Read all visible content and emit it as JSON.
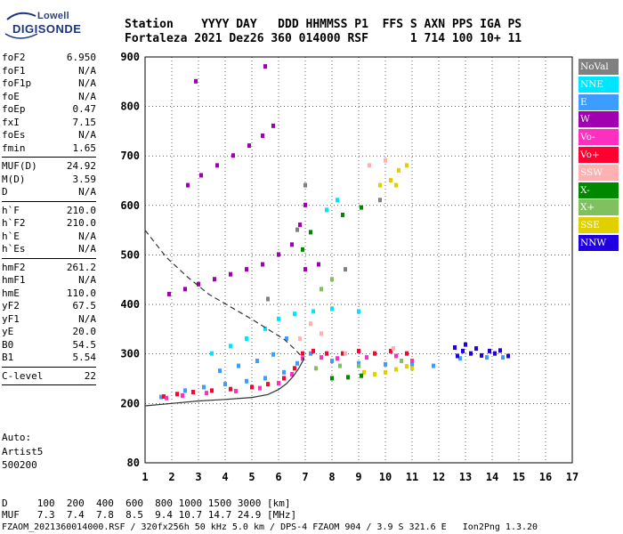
{
  "logo": {
    "line1": "Lowell",
    "line2": "DIGISONDE"
  },
  "header": {
    "labels": "Station    YYYY DAY   DDD HHMMSS P1  FFS S AXN PPS IGA PS",
    "values": "Fortaleza 2021 Dez26 360 014000 RSF      1 714 100 10+ 11"
  },
  "params": [
    {
      "name": "foF2",
      "value": "6.950"
    },
    {
      "name": "foF1",
      "value": "N/A"
    },
    {
      "name": "foF1p",
      "value": "N/A"
    },
    {
      "name": "foE",
      "value": "N/A"
    },
    {
      "name": "foEp",
      "value": "0.47"
    },
    {
      "name": "fxI",
      "value": "7.15"
    },
    {
      "name": "foEs",
      "value": "N/A"
    },
    {
      "name": "fmin",
      "value": "1.65"
    },
    {
      "sep": true
    },
    {
      "name": "MUF(D)",
      "value": "24.92"
    },
    {
      "name": "M(D)",
      "value": "3.59"
    },
    {
      "name": "D",
      "value": "N/A"
    },
    {
      "sep": true
    },
    {
      "name": "h`F",
      "value": "210.0"
    },
    {
      "name": "h`F2",
      "value": "210.0"
    },
    {
      "name": "h`E",
      "value": "N/A"
    },
    {
      "name": "h`Es",
      "value": "N/A"
    },
    {
      "sep": true
    },
    {
      "name": "hmF2",
      "value": "261.2"
    },
    {
      "name": "hmF1",
      "value": "N/A"
    },
    {
      "name": "hmE",
      "value": "110.0"
    },
    {
      "name": "yF2",
      "value": "67.5"
    },
    {
      "name": "yF1",
      "value": "N/A"
    },
    {
      "name": "yE",
      "value": "20.0"
    },
    {
      "name": "B0",
      "value": "54.5"
    },
    {
      "name": "B1",
      "value": "5.54"
    },
    {
      "sep": true
    },
    {
      "name": "C-level",
      "value": "22"
    },
    {
      "sep": true
    }
  ],
  "auto": {
    "line1": "Auto:",
    "line2": "Artist5",
    "line3": "500200"
  },
  "legend": [
    {
      "label": "NoVal",
      "color": "#808080"
    },
    {
      "label": "NNE",
      "color": "#00e5ff"
    },
    {
      "label": "E",
      "color": "#3d9dff"
    },
    {
      "label": "W",
      "color": "#a000b0"
    },
    {
      "label": "Vo-",
      "color": "#ff30c0"
    },
    {
      "label": "Vo+",
      "color": "#ff0030"
    },
    {
      "label": "SSW",
      "color": "#ffb0b0"
    },
    {
      "label": "X-",
      "color": "#008800"
    },
    {
      "label": "X+",
      "color": "#80c060"
    },
    {
      "label": "SSE",
      "color": "#e0d000"
    },
    {
      "label": "NNW",
      "color": "#2000e0"
    }
  ],
  "footer": {
    "row1": "D     100  200  400  600  800 1000 1500 3000 [km]",
    "row2": "MUF   7.3  7.4  7.8  8.5  9.4 10.7 14.7 24.9 [MHz]",
    "row3": "FZAOM_2021360014000.RSF / 320fx256h 50 kHz 5.0 km / DPS-4 FZAOM 904 / 3.9 S 321.6 E   Ion2Png 1.3.20"
  },
  "chart_data": {
    "type": "scatter",
    "xlim": [
      1,
      17
    ],
    "ylim": [
      80,
      900
    ],
    "x_ticks": [
      1,
      2,
      3,
      4,
      5,
      6,
      7,
      8,
      9,
      10,
      11,
      12,
      13,
      14,
      15,
      16,
      17
    ],
    "y_ticks": [
      80,
      200,
      300,
      400,
      500,
      600,
      700,
      800,
      900
    ],
    "grid": true,
    "series": [
      {
        "color": "#3d9dff",
        "points": [
          [
            1.6,
            212
          ],
          [
            2.5,
            225
          ],
          [
            3.2,
            232
          ],
          [
            4.0,
            238
          ],
          [
            4.8,
            244
          ],
          [
            5.5,
            250
          ],
          [
            6.2,
            262
          ],
          [
            6.7,
            280
          ],
          [
            7.2,
            300
          ],
          [
            8.0,
            285
          ],
          [
            9.0,
            280
          ],
          [
            10.0,
            278
          ],
          [
            11.0,
            276
          ],
          [
            11.8,
            275
          ],
          [
            12.8,
            290
          ],
          [
            13.8,
            292
          ],
          [
            14.4,
            292
          ],
          [
            3.8,
            265
          ],
          [
            4.5,
            275
          ],
          [
            5.2,
            285
          ],
          [
            5.8,
            298
          ],
          [
            6.3,
            330
          ]
        ]
      },
      {
        "color": "#ff0030",
        "points": [
          [
            1.7,
            213
          ],
          [
            2.2,
            218
          ],
          [
            2.8,
            222
          ],
          [
            3.5,
            225
          ],
          [
            4.2,
            228
          ],
          [
            5.0,
            232
          ],
          [
            5.6,
            238
          ],
          [
            6.2,
            250
          ],
          [
            6.6,
            270
          ],
          [
            6.9,
            300
          ],
          [
            7.3,
            305
          ],
          [
            7.8,
            300
          ],
          [
            8.4,
            300
          ],
          [
            9.0,
            305
          ],
          [
            9.6,
            300
          ],
          [
            10.2,
            305
          ],
          [
            10.8,
            300
          ]
        ]
      },
      {
        "color": "#a000b0",
        "points": [
          [
            1.9,
            420
          ],
          [
            2.5,
            430
          ],
          [
            3.0,
            440
          ],
          [
            3.6,
            450
          ],
          [
            4.2,
            460
          ],
          [
            4.8,
            470
          ],
          [
            5.4,
            480
          ],
          [
            6.0,
            500
          ],
          [
            6.5,
            520
          ],
          [
            6.8,
            560
          ],
          [
            7.0,
            600
          ],
          [
            2.6,
            640
          ],
          [
            3.1,
            660
          ],
          [
            3.7,
            680
          ],
          [
            4.3,
            700
          ],
          [
            4.9,
            720
          ],
          [
            5.4,
            740
          ],
          [
            5.8,
            760
          ],
          [
            2.9,
            850
          ],
          [
            5.5,
            880
          ],
          [
            7.0,
            470
          ],
          [
            7.5,
            480
          ]
        ]
      },
      {
        "color": "#ff30c0",
        "points": [
          [
            1.8,
            210
          ],
          [
            2.4,
            215
          ],
          [
            3.3,
            220
          ],
          [
            4.4,
            224
          ],
          [
            5.3,
            230
          ],
          [
            6.0,
            240
          ],
          [
            6.5,
            258
          ],
          [
            6.9,
            290
          ],
          [
            7.6,
            292
          ],
          [
            8.2,
            290
          ],
          [
            9.3,
            292
          ],
          [
            10.4,
            295
          ],
          [
            11.0,
            285
          ]
        ]
      },
      {
        "color": "#2000e0",
        "points": [
          [
            12.6,
            312
          ],
          [
            12.9,
            305
          ],
          [
            13.2,
            300
          ],
          [
            13.4,
            310
          ],
          [
            13.6,
            296
          ],
          [
            13.9,
            305
          ],
          [
            14.1,
            300
          ],
          [
            14.3,
            306
          ],
          [
            14.6,
            295
          ],
          [
            12.7,
            295
          ],
          [
            13.0,
            318
          ]
        ]
      },
      {
        "color": "#e0d000",
        "points": [
          [
            9.2,
            262
          ],
          [
            9.6,
            258
          ],
          [
            10.0,
            262
          ],
          [
            10.4,
            268
          ],
          [
            10.8,
            274
          ],
          [
            11.0,
            270
          ],
          [
            9.8,
            640
          ],
          [
            10.2,
            650
          ],
          [
            10.5,
            670
          ],
          [
            10.8,
            680
          ],
          [
            10.4,
            640
          ]
        ]
      },
      {
        "color": "#008800",
        "points": [
          [
            8.0,
            250
          ],
          [
            8.6,
            252
          ],
          [
            9.1,
            255
          ],
          [
            6.9,
            510
          ],
          [
            7.2,
            545
          ],
          [
            8.4,
            580
          ],
          [
            9.1,
            595
          ]
        ]
      },
      {
        "color": "#80c060",
        "points": [
          [
            7.4,
            270
          ],
          [
            8.3,
            275
          ],
          [
            9.0,
            275
          ],
          [
            10.6,
            285
          ],
          [
            7.6,
            430
          ],
          [
            8.0,
            450
          ]
        ]
      },
      {
        "color": "#00e5ff",
        "points": [
          [
            3.5,
            300
          ],
          [
            4.2,
            315
          ],
          [
            4.8,
            330
          ],
          [
            5.5,
            350
          ],
          [
            6.0,
            370
          ],
          [
            6.6,
            380
          ],
          [
            7.3,
            385
          ],
          [
            8.0,
            390
          ],
          [
            9.0,
            385
          ],
          [
            7.8,
            590
          ],
          [
            8.2,
            610
          ]
        ]
      },
      {
        "color": "#ffb0b0",
        "points": [
          [
            6.8,
            330
          ],
          [
            7.2,
            360
          ],
          [
            7.6,
            340
          ],
          [
            8.5,
            300
          ],
          [
            10.3,
            310
          ],
          [
            10.0,
            690
          ],
          [
            9.4,
            680
          ]
        ]
      },
      {
        "color": "#808080",
        "points": [
          [
            6.7,
            550
          ],
          [
            7.0,
            640
          ],
          [
            8.5,
            470
          ],
          [
            5.6,
            410
          ],
          [
            9.8,
            610
          ]
        ]
      }
    ],
    "curves": [
      {
        "style": "dashed",
        "points": [
          [
            1.0,
            550
          ],
          [
            1.8,
            495
          ],
          [
            2.6,
            455
          ],
          [
            3.4,
            420
          ],
          [
            4.2,
            395
          ],
          [
            5.0,
            370
          ],
          [
            5.6,
            350
          ],
          [
            6.2,
            330
          ],
          [
            6.6,
            310
          ],
          [
            6.95,
            290
          ]
        ]
      },
      {
        "style": "solid",
        "points": [
          [
            1.0,
            195
          ],
          [
            2.0,
            200
          ],
          [
            3.0,
            205
          ],
          [
            4.0,
            208
          ],
          [
            5.0,
            212
          ],
          [
            5.6,
            218
          ],
          [
            6.0,
            228
          ],
          [
            6.3,
            240
          ],
          [
            6.55,
            255
          ],
          [
            6.75,
            270
          ],
          [
            6.95,
            290
          ]
        ]
      }
    ]
  }
}
